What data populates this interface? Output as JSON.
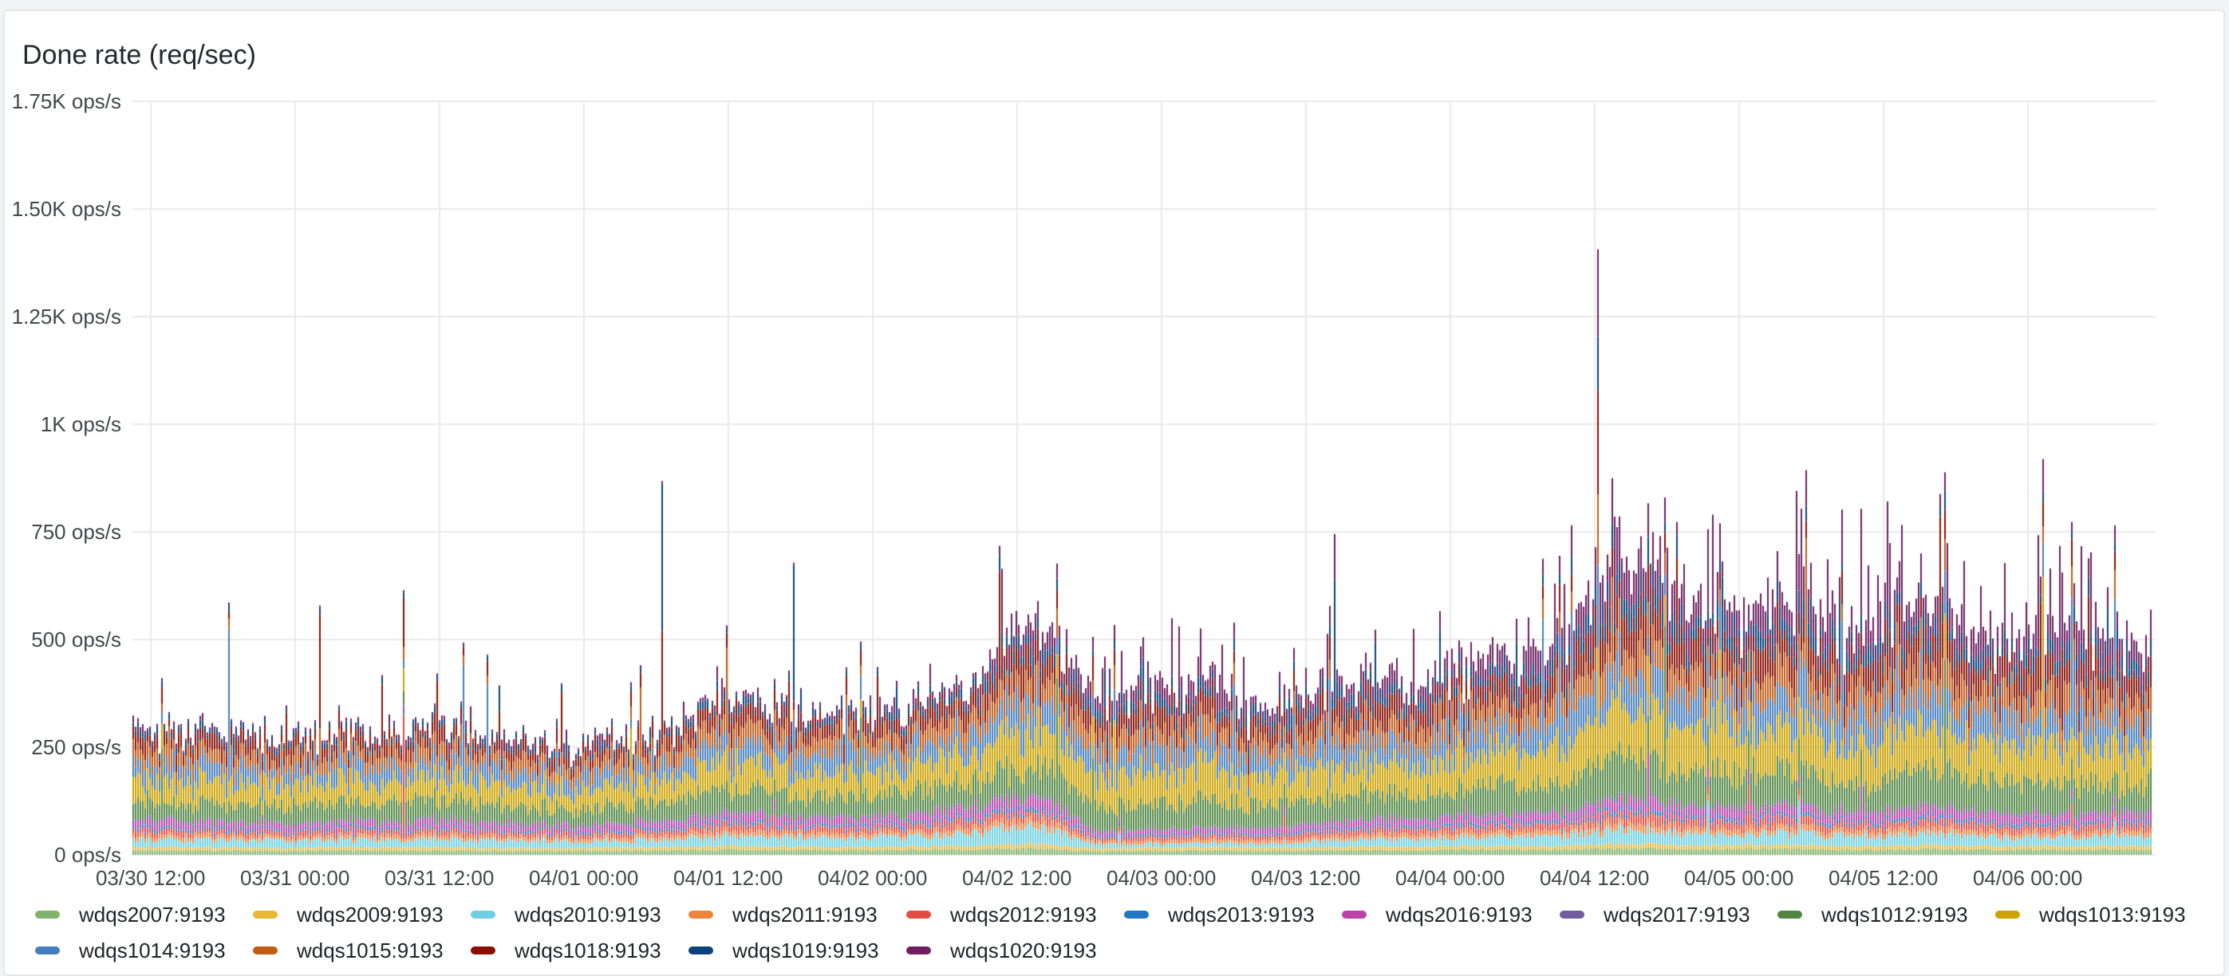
{
  "panel": {
    "title": "Done rate (req/sec)"
  },
  "y_axis": {
    "unit": "ops/s",
    "ticks": [
      "1.75K ops/s",
      "1.50K ops/s",
      "1.25K ops/s",
      "1K ops/s",
      "750 ops/s",
      "500 ops/s",
      "250 ops/s",
      "0 ops/s"
    ]
  },
  "x_axis": {
    "ticks": [
      "03/30 12:00",
      "03/31 00:00",
      "03/31 12:00",
      "04/01 00:00",
      "04/01 12:00",
      "04/02 00:00",
      "04/02 12:00",
      "04/03 00:00",
      "04/03 12:00",
      "04/04 00:00",
      "04/04 12:00",
      "04/05 00:00",
      "04/05 12:00",
      "04/06 00:00"
    ]
  },
  "chart_data": {
    "type": "bar",
    "stacked": true,
    "title": "Done rate (req/sec)",
    "ylabel": "ops/s",
    "ylim": [
      0,
      1750
    ],
    "grid": true,
    "legend_position": "bottom",
    "x_range": [
      "03/30 10:30",
      "04/06 10:30"
    ],
    "sample_start": "03/30 12:00",
    "sample_interval_hours": 6,
    "series": [
      {
        "name": "wdqs2007:9193",
        "color": "#7EB26D",
        "volatility": "low",
        "values": [
          10,
          10,
          9,
          10,
          10,
          9,
          9,
          10,
          12,
          11,
          11,
          12,
          14,
          8,
          10,
          10,
          10,
          11,
          12,
          12,
          15,
          13,
          14,
          12,
          13,
          12,
          12,
          12
        ]
      },
      {
        "name": "wdqs2009:9193",
        "color": "#EAB839",
        "volatility": "low",
        "values": [
          7,
          7,
          6,
          7,
          7,
          6,
          6,
          7,
          8,
          7,
          7,
          8,
          10,
          6,
          7,
          7,
          7,
          8,
          8,
          8,
          10,
          9,
          9,
          8,
          9,
          8,
          8,
          8
        ]
      },
      {
        "name": "wdqs2010:9193",
        "color": "#6ED0E0",
        "volatility": "mid",
        "values": [
          20,
          19,
          18,
          19,
          20,
          18,
          17,
          18,
          24,
          22,
          22,
          28,
          38,
          10,
          9,
          10,
          14,
          18,
          20,
          22,
          34,
          26,
          28,
          24,
          26,
          22,
          22,
          22
        ]
      },
      {
        "name": "wdqs2011:9193",
        "color": "#EF843C",
        "volatility": "low",
        "values": [
          9,
          9,
          8,
          9,
          9,
          8,
          8,
          9,
          11,
          10,
          10,
          12,
          16,
          7,
          8,
          8,
          9,
          10,
          11,
          11,
          15,
          13,
          13,
          12,
          13,
          11,
          11,
          11
        ]
      },
      {
        "name": "wdqs2012:9193",
        "color": "#E24D42",
        "volatility": "mid",
        "values": [
          12,
          11,
          11,
          11,
          12,
          11,
          10,
          11,
          15,
          13,
          13,
          18,
          18,
          8,
          9,
          10,
          12,
          13,
          14,
          15,
          22,
          18,
          19,
          16,
          18,
          15,
          15,
          15
        ]
      },
      {
        "name": "wdqs2013:9193",
        "color": "#1F78C1",
        "volatility": "low",
        "values": [
          6,
          6,
          5,
          6,
          6,
          5,
          5,
          6,
          7,
          6,
          6,
          7,
          9,
          5,
          5,
          5,
          6,
          6,
          7,
          7,
          9,
          8,
          8,
          7,
          8,
          7,
          7,
          7
        ]
      },
      {
        "name": "wdqs2016:9193",
        "color": "#BA43A9",
        "volatility": "mid",
        "values": [
          14,
          13,
          13,
          13,
          14,
          12,
          12,
          13,
          17,
          15,
          15,
          19,
          24,
          8,
          9,
          10,
          13,
          15,
          16,
          17,
          24,
          20,
          21,
          18,
          20,
          17,
          17,
          17
        ]
      },
      {
        "name": "wdqs2017:9193",
        "color": "#705DA0",
        "volatility": "low",
        "values": [
          5,
          5,
          4,
          5,
          5,
          4,
          4,
          5,
          6,
          5,
          5,
          6,
          7,
          4,
          4,
          4,
          5,
          5,
          6,
          6,
          7,
          6,
          6,
          6,
          6,
          6,
          6,
          6
        ]
      },
      {
        "name": "wdqs1012:9193",
        "color": "#508642",
        "volatility": "mid",
        "values": [
          42,
          41,
          40,
          41,
          43,
          40,
          38,
          40,
          52,
          47,
          46,
          52,
          70,
          55,
          62,
          52,
          54,
          58,
          62,
          66,
          88,
          76,
          80,
          70,
          76,
          66,
          68,
          66
        ]
      },
      {
        "name": "wdqs1013:9193",
        "color": "#CCA300",
        "volatility": "mid",
        "values": [
          50,
          49,
          48,
          49,
          51,
          47,
          45,
          48,
          62,
          56,
          55,
          62,
          90,
          70,
          78,
          64,
          66,
          72,
          78,
          84,
          110,
          95,
          100,
          88,
          96,
          84,
          86,
          84
        ]
      },
      {
        "name": "wdqs1014:9193",
        "color": "#447EBC",
        "volatility": "high",
        "values": [
          38,
          37,
          36,
          37,
          39,
          36,
          34,
          36,
          46,
          42,
          41,
          46,
          62,
          48,
          55,
          45,
          47,
          51,
          55,
          58,
          78,
          67,
          71,
          62,
          68,
          59,
          60,
          59
        ]
      },
      {
        "name": "wdqs1015:9193",
        "color": "#C15C17",
        "volatility": "mid",
        "values": [
          32,
          31,
          30,
          31,
          33,
          30,
          29,
          31,
          40,
          36,
          35,
          40,
          55,
          42,
          48,
          39,
          41,
          45,
          48,
          51,
          70,
          60,
          63,
          55,
          60,
          52,
          53,
          52
        ]
      },
      {
        "name": "wdqs1018:9193",
        "color": "#890F02",
        "volatility": "high",
        "values": [
          30,
          30,
          29,
          30,
          31,
          28,
          27,
          29,
          40,
          35,
          34,
          40,
          60,
          45,
          52,
          42,
          44,
          48,
          52,
          56,
          80,
          66,
          70,
          60,
          66,
          57,
          58,
          57
        ]
      },
      {
        "name": "wdqs1019:9193",
        "color": "#0A437C",
        "volatility": "high",
        "values": [
          12,
          12,
          11,
          12,
          12,
          11,
          11,
          12,
          17,
          15,
          14,
          17,
          30,
          22,
          26,
          20,
          21,
          24,
          26,
          28,
          45,
          36,
          38,
          32,
          36,
          30,
          31,
          30
        ]
      },
      {
        "name": "wdqs1020:9193",
        "color": "#6D1F62",
        "volatility": "vhigh",
        "values": [
          6,
          6,
          6,
          6,
          6,
          6,
          6,
          6,
          9,
          8,
          8,
          12,
          40,
          30,
          36,
          26,
          28,
          33,
          37,
          41,
          70,
          56,
          60,
          50,
          56,
          47,
          48,
          46
        ]
      }
    ],
    "spike_events": [
      {
        "time": "03/30 18:30",
        "hours_from_start": 8,
        "add": {
          "wdqs1014:9193": 300
        }
      },
      {
        "time": "03/31 02:00",
        "hours_from_start": 15.5,
        "add": {
          "wdqs1018:9193": 230,
          "wdqs1015:9193": 70
        }
      },
      {
        "time": "03/31 09:00",
        "hours_from_start": 22.5,
        "add": {
          "wdqs2012:9193": 280,
          "wdqs1018:9193": 90
        }
      },
      {
        "time": "03/31 14:00",
        "hours_from_start": 27.5,
        "add": {
          "wdqs1014:9193": 230
        }
      },
      {
        "time": "03/31 16:00",
        "hours_from_start": 29.5,
        "add": {
          "wdqs1014:9193": 200
        }
      },
      {
        "time": "04/01 06:30",
        "hours_from_start": 44,
        "add": {
          "wdqs1019:9193": 330,
          "wdqs1018:9193": 220
        }
      },
      {
        "time": "04/01 17:30",
        "hours_from_start": 55,
        "add": {
          "wdqs1019:9193": 300,
          "wdqs1014:9193": 100
        }
      },
      {
        "time": "04/03 14:30",
        "hours_from_start": 100,
        "add": {
          "wdqs1019:9193": 280
        }
      },
      {
        "time": "04/04 12:30",
        "hours_from_start": 122,
        "add": {
          "wdqs1013:9193": 140,
          "wdqs1014:9193": 150,
          "wdqs1015:9193": 100,
          "wdqs1018:9193": 150,
          "wdqs1019:9193": 100,
          "wdqs1020:9193": 130
        }
      },
      {
        "time": "04/06 03:00",
        "hours_from_start": 160.5,
        "add": {
          "wdqs1020:9193": 230,
          "wdqs1018:9193": 80
        }
      }
    ]
  },
  "colors": {
    "page_bg": "#f2f3f4",
    "panel_bg": "#ffffff",
    "panel_border": "#e4e7e9",
    "gridline": "#e9eaec",
    "axis_text": "#44474c",
    "legend_text": "#1f2329",
    "title_text": "#24292e"
  }
}
